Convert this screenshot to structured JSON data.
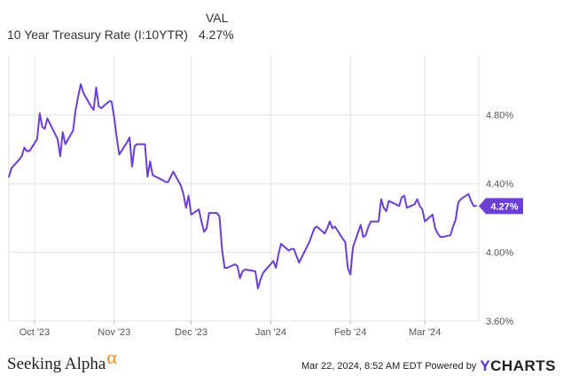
{
  "header": {
    "val_label": "VAL",
    "series_name": "10 Year Treasury Rate (I:10YTR)",
    "current_value": "4.27%"
  },
  "brand": {
    "name": "Seeking Alpha",
    "symbol": "α"
  },
  "footer": {
    "timestamp": "Mar 22, 2024, 8:52 AM EDT Powered by",
    "logo_y": "Y",
    "logo_rest": "CHARTS"
  },
  "colors": {
    "line": "#6b3fd4",
    "badge": "#6b3fd4",
    "grid": "#e2e2e2"
  },
  "chart_data": {
    "type": "line",
    "title": "",
    "xlabel": "",
    "ylabel": "",
    "ylim": [
      3.6,
      5.15
    ],
    "yticks": [
      {
        "value": 3.6,
        "label": "3.60%"
      },
      {
        "value": 4.0,
        "label": "4.00%"
      },
      {
        "value": 4.4,
        "label": "4.40%"
      },
      {
        "value": 4.8,
        "label": "4.80%"
      }
    ],
    "xlim": [
      "2023-09-21",
      "2024-03-22"
    ],
    "xticks": [
      {
        "date": "2023-10-01",
        "label": "Oct '23"
      },
      {
        "date": "2023-11-01",
        "label": "Nov '23"
      },
      {
        "date": "2023-12-01",
        "label": "Dec '23"
      },
      {
        "date": "2024-01-01",
        "label": "Jan '24"
      },
      {
        "date": "2024-02-01",
        "label": "Feb '24"
      },
      {
        "date": "2024-03-01",
        "label": "Mar '24"
      }
    ],
    "last_value_label": "4.27%",
    "grid": true,
    "series": [
      {
        "name": "10 Year Treasury Rate (I:10YTR)",
        "points": [
          [
            "2023-09-21",
            4.44
          ],
          [
            "2023-09-22",
            4.49
          ],
          [
            "2023-09-25",
            4.54
          ],
          [
            "2023-09-26",
            4.56
          ],
          [
            "2023-09-27",
            4.61
          ],
          [
            "2023-09-28",
            4.59
          ],
          [
            "2023-09-29",
            4.59
          ],
          [
            "2023-10-02",
            4.66
          ],
          [
            "2023-10-03",
            4.81
          ],
          [
            "2023-10-04",
            4.73
          ],
          [
            "2023-10-05",
            4.72
          ],
          [
            "2023-10-06",
            4.78
          ],
          [
            "2023-10-10",
            4.66
          ],
          [
            "2023-10-11",
            4.56
          ],
          [
            "2023-10-12",
            4.7
          ],
          [
            "2023-10-13",
            4.63
          ],
          [
            "2023-10-16",
            4.71
          ],
          [
            "2023-10-17",
            4.83
          ],
          [
            "2023-10-18",
            4.91
          ],
          [
            "2023-10-19",
            4.98
          ],
          [
            "2023-10-20",
            4.93
          ],
          [
            "2023-10-23",
            4.85
          ],
          [
            "2023-10-24",
            4.83
          ],
          [
            "2023-10-25",
            4.96
          ],
          [
            "2023-10-26",
            4.85
          ],
          [
            "2023-10-27",
            4.84
          ],
          [
            "2023-10-30",
            4.88
          ],
          [
            "2023-10-31",
            4.88
          ],
          [
            "2023-11-01",
            4.79
          ],
          [
            "2023-11-02",
            4.67
          ],
          [
            "2023-11-03",
            4.57
          ],
          [
            "2023-11-06",
            4.64
          ],
          [
            "2023-11-07",
            4.67
          ],
          [
            "2023-11-08",
            4.5
          ],
          [
            "2023-11-09",
            4.62
          ],
          [
            "2023-11-10",
            4.63
          ],
          [
            "2023-11-13",
            4.63
          ],
          [
            "2023-11-14",
            4.44
          ],
          [
            "2023-11-15",
            4.53
          ],
          [
            "2023-11-16",
            4.45
          ],
          [
            "2023-11-20",
            4.42
          ],
          [
            "2023-11-21",
            4.41
          ],
          [
            "2023-11-22",
            4.41
          ],
          [
            "2023-11-24",
            4.47
          ],
          [
            "2023-11-27",
            4.39
          ],
          [
            "2023-11-28",
            4.34
          ],
          [
            "2023-11-29",
            4.26
          ],
          [
            "2023-11-30",
            4.33
          ],
          [
            "2023-12-01",
            4.22
          ],
          [
            "2023-12-04",
            4.25
          ],
          [
            "2023-12-05",
            4.18
          ],
          [
            "2023-12-06",
            4.12
          ],
          [
            "2023-12-07",
            4.14
          ],
          [
            "2023-12-08",
            4.23
          ],
          [
            "2023-12-11",
            4.23
          ],
          [
            "2023-12-12",
            4.21
          ],
          [
            "2023-12-13",
            4.02
          ],
          [
            "2023-12-14",
            3.91
          ],
          [
            "2023-12-15",
            3.91
          ],
          [
            "2023-12-18",
            3.93
          ],
          [
            "2023-12-19",
            3.92
          ],
          [
            "2023-12-20",
            3.85
          ],
          [
            "2023-12-21",
            3.89
          ],
          [
            "2023-12-22",
            3.9
          ],
          [
            "2023-12-26",
            3.89
          ],
          [
            "2023-12-27",
            3.79
          ],
          [
            "2023-12-28",
            3.84
          ],
          [
            "2023-12-29",
            3.88
          ],
          [
            "2024-01-02",
            3.95
          ],
          [
            "2024-01-03",
            3.91
          ],
          [
            "2024-01-04",
            3.99
          ],
          [
            "2024-01-05",
            4.05
          ],
          [
            "2024-01-08",
            4.01
          ],
          [
            "2024-01-09",
            4.02
          ],
          [
            "2024-01-10",
            4.02
          ],
          [
            "2024-01-11",
            3.98
          ],
          [
            "2024-01-12",
            3.94
          ],
          [
            "2024-01-16",
            4.06
          ],
          [
            "2024-01-17",
            4.1
          ],
          [
            "2024-01-18",
            4.14
          ],
          [
            "2024-01-19",
            4.15
          ],
          [
            "2024-01-22",
            4.11
          ],
          [
            "2024-01-23",
            4.14
          ],
          [
            "2024-01-24",
            4.18
          ],
          [
            "2024-01-25",
            4.14
          ],
          [
            "2024-01-26",
            4.15
          ],
          [
            "2024-01-29",
            4.08
          ],
          [
            "2024-01-30",
            4.06
          ],
          [
            "2024-01-31",
            3.91
          ],
          [
            "2024-02-01",
            3.87
          ],
          [
            "2024-02-02",
            4.03
          ],
          [
            "2024-02-05",
            4.16
          ],
          [
            "2024-02-06",
            4.09
          ],
          [
            "2024-02-07",
            4.1
          ],
          [
            "2024-02-08",
            4.15
          ],
          [
            "2024-02-09",
            4.18
          ],
          [
            "2024-02-12",
            4.18
          ],
          [
            "2024-02-13",
            4.31
          ],
          [
            "2024-02-14",
            4.26
          ],
          [
            "2024-02-15",
            4.24
          ],
          [
            "2024-02-16",
            4.3
          ],
          [
            "2024-02-20",
            4.27
          ],
          [
            "2024-02-21",
            4.32
          ],
          [
            "2024-02-22",
            4.33
          ],
          [
            "2024-02-23",
            4.26
          ],
          [
            "2024-02-26",
            4.28
          ],
          [
            "2024-02-27",
            4.31
          ],
          [
            "2024-02-28",
            4.27
          ],
          [
            "2024-02-29",
            4.25
          ],
          [
            "2024-03-01",
            4.18
          ],
          [
            "2024-03-04",
            4.22
          ],
          [
            "2024-03-05",
            4.14
          ],
          [
            "2024-03-06",
            4.11
          ],
          [
            "2024-03-07",
            4.09
          ],
          [
            "2024-03-08",
            4.09
          ],
          [
            "2024-03-11",
            4.1
          ],
          [
            "2024-03-12",
            4.15
          ],
          [
            "2024-03-13",
            4.19
          ],
          [
            "2024-03-14",
            4.29
          ],
          [
            "2024-03-15",
            4.31
          ],
          [
            "2024-03-18",
            4.34
          ],
          [
            "2024-03-19",
            4.3
          ],
          [
            "2024-03-20",
            4.27
          ],
          [
            "2024-03-21",
            4.27
          ]
        ]
      }
    ]
  }
}
